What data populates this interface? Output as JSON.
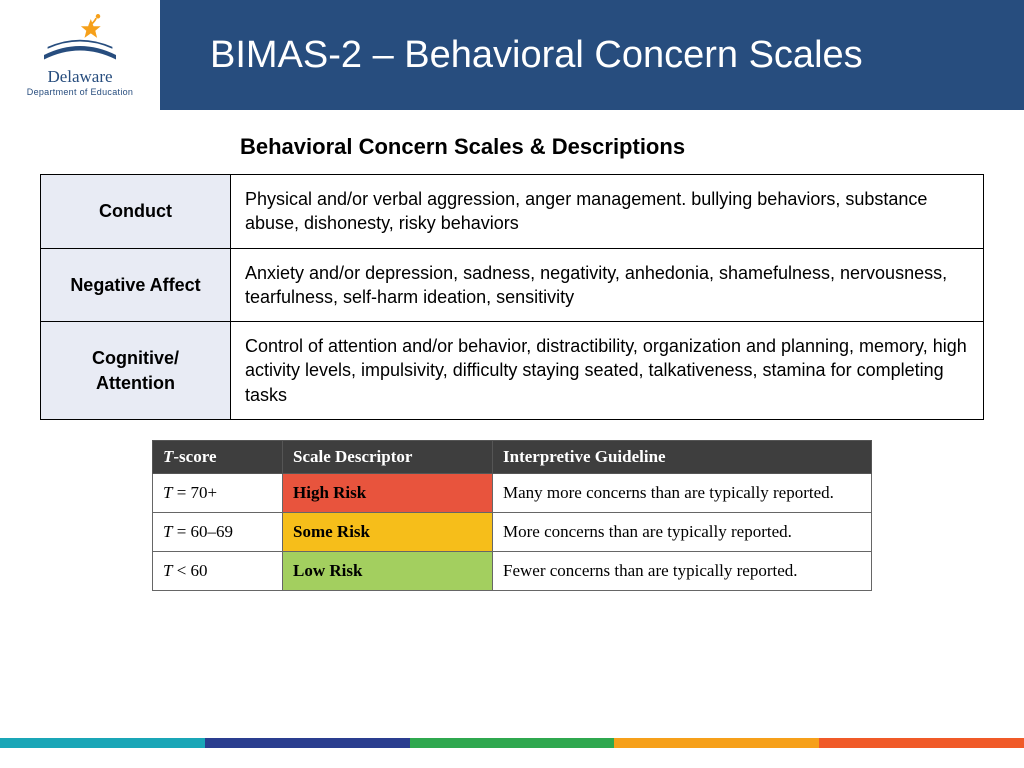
{
  "header": {
    "title": "BIMAS-2 – Behavioral Concern Scales",
    "logo_text": "Delaware",
    "logo_subtext": "Department of Education"
  },
  "subtitle": "Behavioral Concern Scales & Descriptions",
  "scales_table": {
    "rows": [
      {
        "label": "Conduct",
        "desc": "Physical and/or verbal aggression, anger management. bullying behaviors, substance abuse, dishonesty, risky behaviors"
      },
      {
        "label": "Negative Affect",
        "desc": "Anxiety and/or depression, sadness, negativity, anhedonia, shamefulness, nervousness, tearfulness, self-harm ideation, sensitivity"
      },
      {
        "label": "Cognitive/ Attention",
        "desc": "Control of attention and/or behavior, distractibility, organization and planning, memory, high activity levels, impulsivity, difficulty staying seated, talkativeness, stamina for completing tasks"
      }
    ],
    "label_bg": "#e8ebf4",
    "border_color": "#000000"
  },
  "tscore_table": {
    "headers": {
      "col1_prefix": "T",
      "col1_suffix": "-score",
      "col2": "Scale Descriptor",
      "col3": "Interpretive Guideline"
    },
    "header_bg": "#3e3e3e",
    "header_text_color": "#ffffff",
    "rows": [
      {
        "t_prefix": "T",
        "t_suffix": " = 70+",
        "descriptor": "High Risk",
        "guideline": "Many more concerns than are typically reported.",
        "descriptor_bg": "#e8543d"
      },
      {
        "t_prefix": "T",
        "t_suffix": " = 60–69",
        "descriptor": "Some Risk",
        "guideline": "More concerns than are typically reported.",
        "descriptor_bg": "#f6be1a"
      },
      {
        "t_prefix": "T",
        "t_suffix": " < 60",
        "descriptor": "Low Risk",
        "guideline": "Fewer concerns than are typically reported.",
        "descriptor_bg": "#a3cf5f"
      }
    ]
  },
  "footer_colors": [
    "#1aa6b7",
    "#2a3e8f",
    "#2fa84f",
    "#f6a01a",
    "#f05a28"
  ],
  "logo_colors": {
    "book": "#274d7e",
    "pages": "#ffffff",
    "star": "#f6a01a",
    "person": "#f6a01a"
  }
}
